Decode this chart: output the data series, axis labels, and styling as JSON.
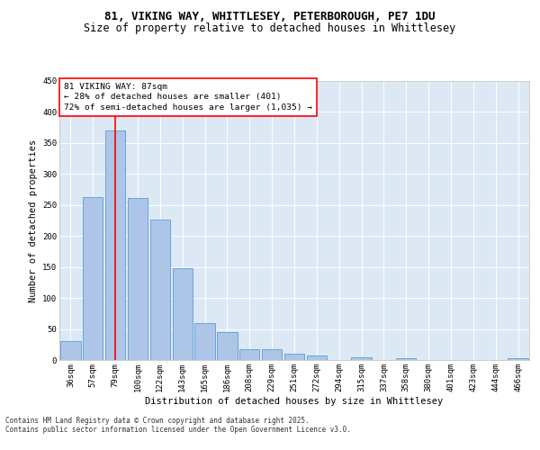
{
  "title_line1": "81, VIKING WAY, WHITTLESEY, PETERBOROUGH, PE7 1DU",
  "title_line2": "Size of property relative to detached houses in Whittlesey",
  "xlabel": "Distribution of detached houses by size in Whittlesey",
  "ylabel": "Number of detached properties",
  "categories": [
    "36sqm",
    "57sqm",
    "79sqm",
    "100sqm",
    "122sqm",
    "143sqm",
    "165sqm",
    "186sqm",
    "208sqm",
    "229sqm",
    "251sqm",
    "272sqm",
    "294sqm",
    "315sqm",
    "337sqm",
    "358sqm",
    "380sqm",
    "401sqm",
    "423sqm",
    "444sqm",
    "466sqm"
  ],
  "values": [
    30,
    263,
    370,
    261,
    226,
    148,
    60,
    45,
    18,
    18,
    10,
    7,
    0,
    5,
    0,
    3,
    0,
    0,
    0,
    0,
    3
  ],
  "bar_color": "#adc6e8",
  "bar_edge_color": "#5b9bd5",
  "vline_x": 2,
  "vline_color": "red",
  "annotation_text": "81 VIKING WAY: 87sqm\n← 28% of detached houses are smaller (401)\n72% of semi-detached houses are larger (1,035) →",
  "annotation_box_color": "red",
  "annotation_bg": "white",
  "footer_line1": "Contains HM Land Registry data © Crown copyright and database right 2025.",
  "footer_line2": "Contains public sector information licensed under the Open Government Licence v3.0.",
  "ylim": [
    0,
    450
  ],
  "yticks": [
    0,
    50,
    100,
    150,
    200,
    250,
    300,
    350,
    400,
    450
  ],
  "bg_color": "#dce9f5",
  "fig_bg": "#ffffff",
  "title_fontsize": 9,
  "subtitle_fontsize": 8.5,
  "axis_label_fontsize": 7.5,
  "tick_fontsize": 6.5,
  "annotation_fontsize": 6.8,
  "footer_fontsize": 5.5
}
